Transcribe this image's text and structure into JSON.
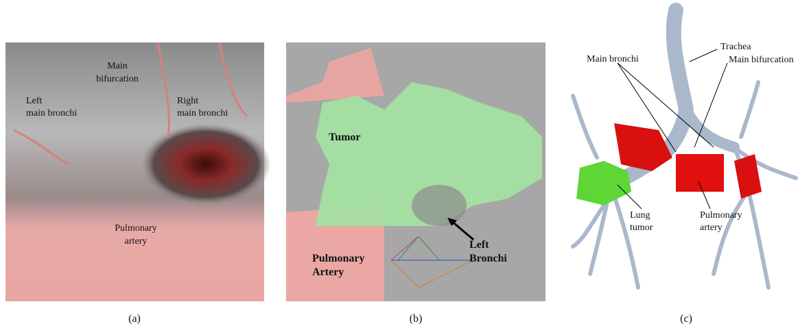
{
  "panels": [
    {
      "caption": "(a)",
      "labels": [
        {
          "lines": [
            "Main",
            "bifurcation"
          ]
        },
        {
          "lines": [
            "Left",
            "main bronchi"
          ]
        },
        {
          "lines": [
            "Right",
            "main bronchi"
          ]
        },
        {
          "lines": [
            "Pulmonary",
            "artery"
          ]
        }
      ]
    },
    {
      "caption": "(b)",
      "labels": [
        {
          "lines": [
            "Tumor"
          ]
        },
        {
          "lines": [
            "Left",
            "Bronchi"
          ]
        },
        {
          "lines": [
            "Pulmonary",
            "Artery"
          ]
        }
      ]
    },
    {
      "caption": "(c)",
      "labels": [
        {
          "lines": [
            "Trachea"
          ]
        },
        {
          "lines": [
            "Main bronchi"
          ]
        },
        {
          "lines": [
            "Main bifurcation"
          ]
        },
        {
          "lines": [
            "Lung",
            "tumor"
          ]
        },
        {
          "lines": [
            "Pulmonary",
            "artery"
          ]
        }
      ]
    }
  ]
}
